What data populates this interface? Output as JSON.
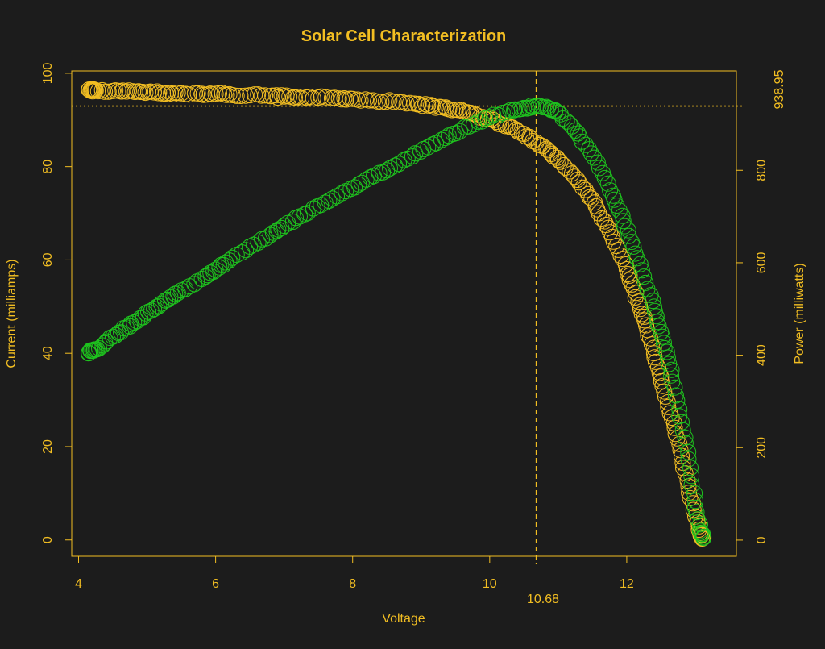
{
  "colors": {
    "background": "#1c1c1c",
    "accent": "#f2be22",
    "current_series": "#f2be22",
    "power_series": "#1ec31e"
  },
  "chart_data": {
    "type": "scatter",
    "title": "Solar Cell Characterization",
    "xlabel": "Voltage",
    "ylabel_left": "Current (milliamps)",
    "ylabel_right": "Power (milliwatts)",
    "xlim": [
      3.9,
      13.6
    ],
    "ylim_left": [
      -3.5,
      100.5
    ],
    "ylim_right": [
      -35,
      1015
    ],
    "x_ticks": [
      4,
      6,
      8,
      10,
      12
    ],
    "y_ticks_left": [
      0,
      20,
      40,
      60,
      80,
      100
    ],
    "y_ticks_right": [
      0,
      200,
      400,
      600,
      800
    ],
    "max_power_point": {
      "voltage": 10.68,
      "voltage_label": "10.68",
      "power": 938.95,
      "power_label": "938.95"
    },
    "series": [
      {
        "name": "Current",
        "axis": "left",
        "marker": "open-circle",
        "points": [
          [
            4.15,
            96.5
          ],
          [
            4.2,
            96.4
          ],
          [
            4.25,
            96.3
          ],
          [
            4.5,
            96.2
          ],
          [
            4.7,
            96.1
          ],
          [
            4.9,
            96.0
          ],
          [
            5.1,
            95.9
          ],
          [
            5.3,
            95.8
          ],
          [
            5.5,
            95.7
          ],
          [
            5.8,
            95.6
          ],
          [
            6.0,
            95.6
          ],
          [
            6.2,
            95.5
          ],
          [
            6.5,
            95.3
          ],
          [
            6.8,
            95.1
          ],
          [
            7.0,
            95.0
          ],
          [
            7.2,
            94.9
          ],
          [
            7.5,
            94.8
          ],
          [
            7.8,
            94.6
          ],
          [
            8.0,
            94.5
          ],
          [
            8.3,
            94.2
          ],
          [
            8.6,
            93.9
          ],
          [
            8.9,
            93.5
          ],
          [
            9.1,
            93.1
          ],
          [
            9.3,
            92.7
          ],
          [
            9.5,
            92.2
          ],
          [
            9.7,
            91.5
          ],
          [
            9.9,
            90.6
          ],
          [
            10.1,
            89.6
          ],
          [
            10.3,
            88.5
          ],
          [
            10.5,
            87.0
          ],
          [
            10.68,
            85.2
          ],
          [
            10.85,
            83.5
          ],
          [
            11.0,
            81.5
          ],
          [
            11.2,
            78.5
          ],
          [
            11.4,
            75.0
          ],
          [
            11.55,
            71.5
          ],
          [
            11.7,
            67.5
          ],
          [
            11.85,
            63.0
          ],
          [
            12.0,
            58.0
          ],
          [
            12.1,
            54.0
          ],
          [
            12.2,
            49.5
          ],
          [
            12.3,
            45.0
          ],
          [
            12.4,
            40.0
          ],
          [
            12.5,
            35.0
          ],
          [
            12.6,
            29.5
          ],
          [
            12.7,
            24.0
          ],
          [
            12.8,
            18.0
          ],
          [
            12.9,
            11.5
          ],
          [
            13.0,
            5.0
          ],
          [
            13.07,
            1.5
          ],
          [
            13.1,
            0.3
          ]
        ]
      },
      {
        "name": "Power",
        "axis": "right",
        "marker": "open-circle",
        "points": [
          [
            4.15,
            405
          ],
          [
            4.2,
            410
          ],
          [
            4.3,
            415
          ],
          [
            4.5,
            440
          ],
          [
            4.7,
            460
          ],
          [
            4.9,
            480
          ],
          [
            5.1,
            500
          ],
          [
            5.3,
            520
          ],
          [
            5.5,
            540
          ],
          [
            5.8,
            565
          ],
          [
            6.0,
            585
          ],
          [
            6.2,
            605
          ],
          [
            6.5,
            635
          ],
          [
            6.8,
            660
          ],
          [
            7.0,
            680
          ],
          [
            7.3,
            705
          ],
          [
            7.6,
            730
          ],
          [
            7.9,
            755
          ],
          [
            8.2,
            780
          ],
          [
            8.5,
            800
          ],
          [
            8.8,
            825
          ],
          [
            9.1,
            850
          ],
          [
            9.4,
            875
          ],
          [
            9.7,
            895
          ],
          [
            10.0,
            915
          ],
          [
            10.3,
            930
          ],
          [
            10.5,
            935
          ],
          [
            10.68,
            938.95
          ],
          [
            10.85,
            935
          ],
          [
            11.0,
            925
          ],
          [
            11.2,
            895
          ],
          [
            11.4,
            855
          ],
          [
            11.6,
            805
          ],
          [
            11.8,
            745
          ],
          [
            11.95,
            690
          ],
          [
            12.1,
            635
          ],
          [
            12.25,
            570
          ],
          [
            12.4,
            505
          ],
          [
            12.5,
            450
          ],
          [
            12.6,
            395
          ],
          [
            12.7,
            330
          ],
          [
            12.8,
            255
          ],
          [
            12.9,
            175
          ],
          [
            13.0,
            85
          ],
          [
            13.07,
            20
          ],
          [
            13.12,
            5
          ]
        ]
      }
    ]
  }
}
